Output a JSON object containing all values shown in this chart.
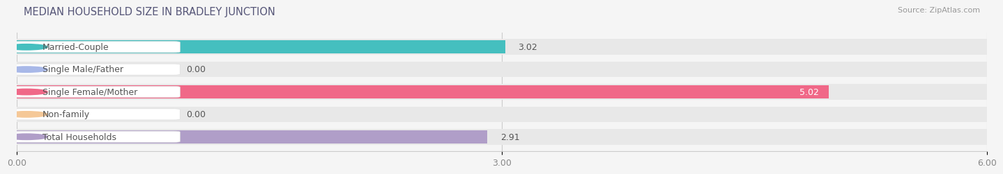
{
  "title": "MEDIAN HOUSEHOLD SIZE IN BRADLEY JUNCTION",
  "source": "Source: ZipAtlas.com",
  "categories": [
    "Married-Couple",
    "Single Male/Father",
    "Single Female/Mother",
    "Non-family",
    "Total Households"
  ],
  "values": [
    3.02,
    0.0,
    5.02,
    0.0,
    2.91
  ],
  "bar_colors": [
    "#45bfbf",
    "#a8b8e8",
    "#f06888",
    "#f5c897",
    "#b09ec8"
  ],
  "bar_bg_color": "#e8e8e8",
  "value_labels": [
    "3.02",
    "0.00",
    "5.02",
    "0.00",
    "2.91"
  ],
  "xlim": [
    0,
    6.0
  ],
  "xticks": [
    0.0,
    3.0,
    6.0
  ],
  "xticklabels": [
    "0.00",
    "3.00",
    "6.00"
  ],
  "title_fontsize": 10.5,
  "label_fontsize": 9,
  "value_fontsize": 9,
  "source_fontsize": 8,
  "background_color": "#f5f5f5",
  "title_color": "#555577",
  "label_text_color": "#555555"
}
